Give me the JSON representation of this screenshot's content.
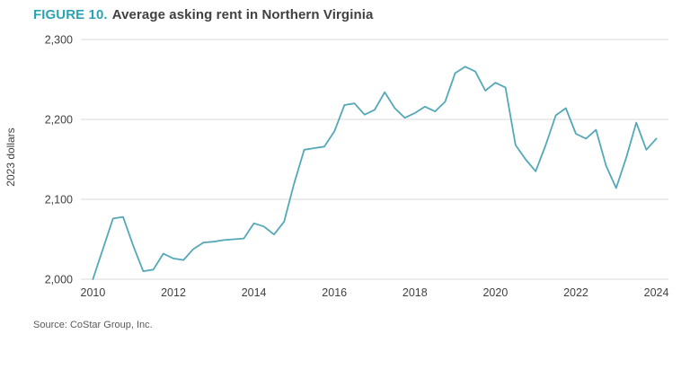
{
  "title": {
    "figure_label": "FIGURE 10.",
    "text": "Average asking rent in Northern Virginia"
  },
  "source": "Source: CoStar Group, Inc.",
  "colors": {
    "accent_teal": "#2aa4b5",
    "line_teal": "#54a8b7",
    "grid_gray": "#d8d8d8",
    "text_dark": "#414042"
  },
  "chart_data": {
    "type": "line",
    "title": "Average asking rent in Northern Virginia",
    "xlabel": "",
    "ylabel": "2023 dollars",
    "legend": "none",
    "grid": "horizontal-only",
    "line_color": "#54a8b7",
    "grid_color": "#d8d8d8",
    "xlim": [
      2009.7,
      2024.3
    ],
    "ylim": [
      2000,
      2300
    ],
    "xticks": [
      {
        "value": 2010,
        "label": "2010"
      },
      {
        "value": 2012,
        "label": "2012"
      },
      {
        "value": 2014,
        "label": "2014"
      },
      {
        "value": 2016,
        "label": "2016"
      },
      {
        "value": 2018,
        "label": "2018"
      },
      {
        "value": 2020,
        "label": "2020"
      },
      {
        "value": 2022,
        "label": "2022"
      },
      {
        "value": 2024,
        "label": "2024"
      }
    ],
    "yticks": [
      {
        "value": 2000,
        "label": "2,000"
      },
      {
        "value": 2100,
        "label": "2,100"
      },
      {
        "value": 2200,
        "label": "2,200"
      },
      {
        "value": 2300,
        "label": "2,300"
      }
    ],
    "series": [
      {
        "name": "Average asking rent (2023 dollars)",
        "x": [
          2010.0,
          2010.25,
          2010.5,
          2010.75,
          2011.0,
          2011.25,
          2011.5,
          2011.75,
          2012.0,
          2012.25,
          2012.5,
          2012.75,
          2013.0,
          2013.25,
          2013.5,
          2013.75,
          2014.0,
          2014.25,
          2014.5,
          2014.75,
          2015.0,
          2015.25,
          2015.5,
          2015.75,
          2016.0,
          2016.25,
          2016.5,
          2016.75,
          2017.0,
          2017.25,
          2017.5,
          2017.75,
          2018.0,
          2018.25,
          2018.5,
          2018.75,
          2019.0,
          2019.25,
          2019.5,
          2019.75,
          2020.0,
          2020.25,
          2020.5,
          2020.75,
          2021.0,
          2021.25,
          2021.5,
          2021.75,
          2022.0,
          2022.25,
          2022.5,
          2022.75,
          2023.0,
          2023.25,
          2023.5,
          2023.75,
          2024.0
        ],
        "y": [
          2000,
          2038,
          2076,
          2078,
          2042,
          2010,
          2012,
          2032,
          2026,
          2024,
          2038,
          2046,
          2047,
          2049,
          2050,
          2051,
          2070,
          2066,
          2056,
          2072,
          2120,
          2162,
          2164,
          2166,
          2185,
          2218,
          2220,
          2206,
          2212,
          2234,
          2214,
          2202,
          2208,
          2216,
          2210,
          2222,
          2258,
          2266,
          2260,
          2236,
          2246,
          2240,
          2168,
          2150,
          2135,
          2168,
          2205,
          2214,
          2182,
          2176,
          2187,
          2142,
          2114,
          2152,
          2196,
          2162,
          2176
        ]
      }
    ]
  }
}
